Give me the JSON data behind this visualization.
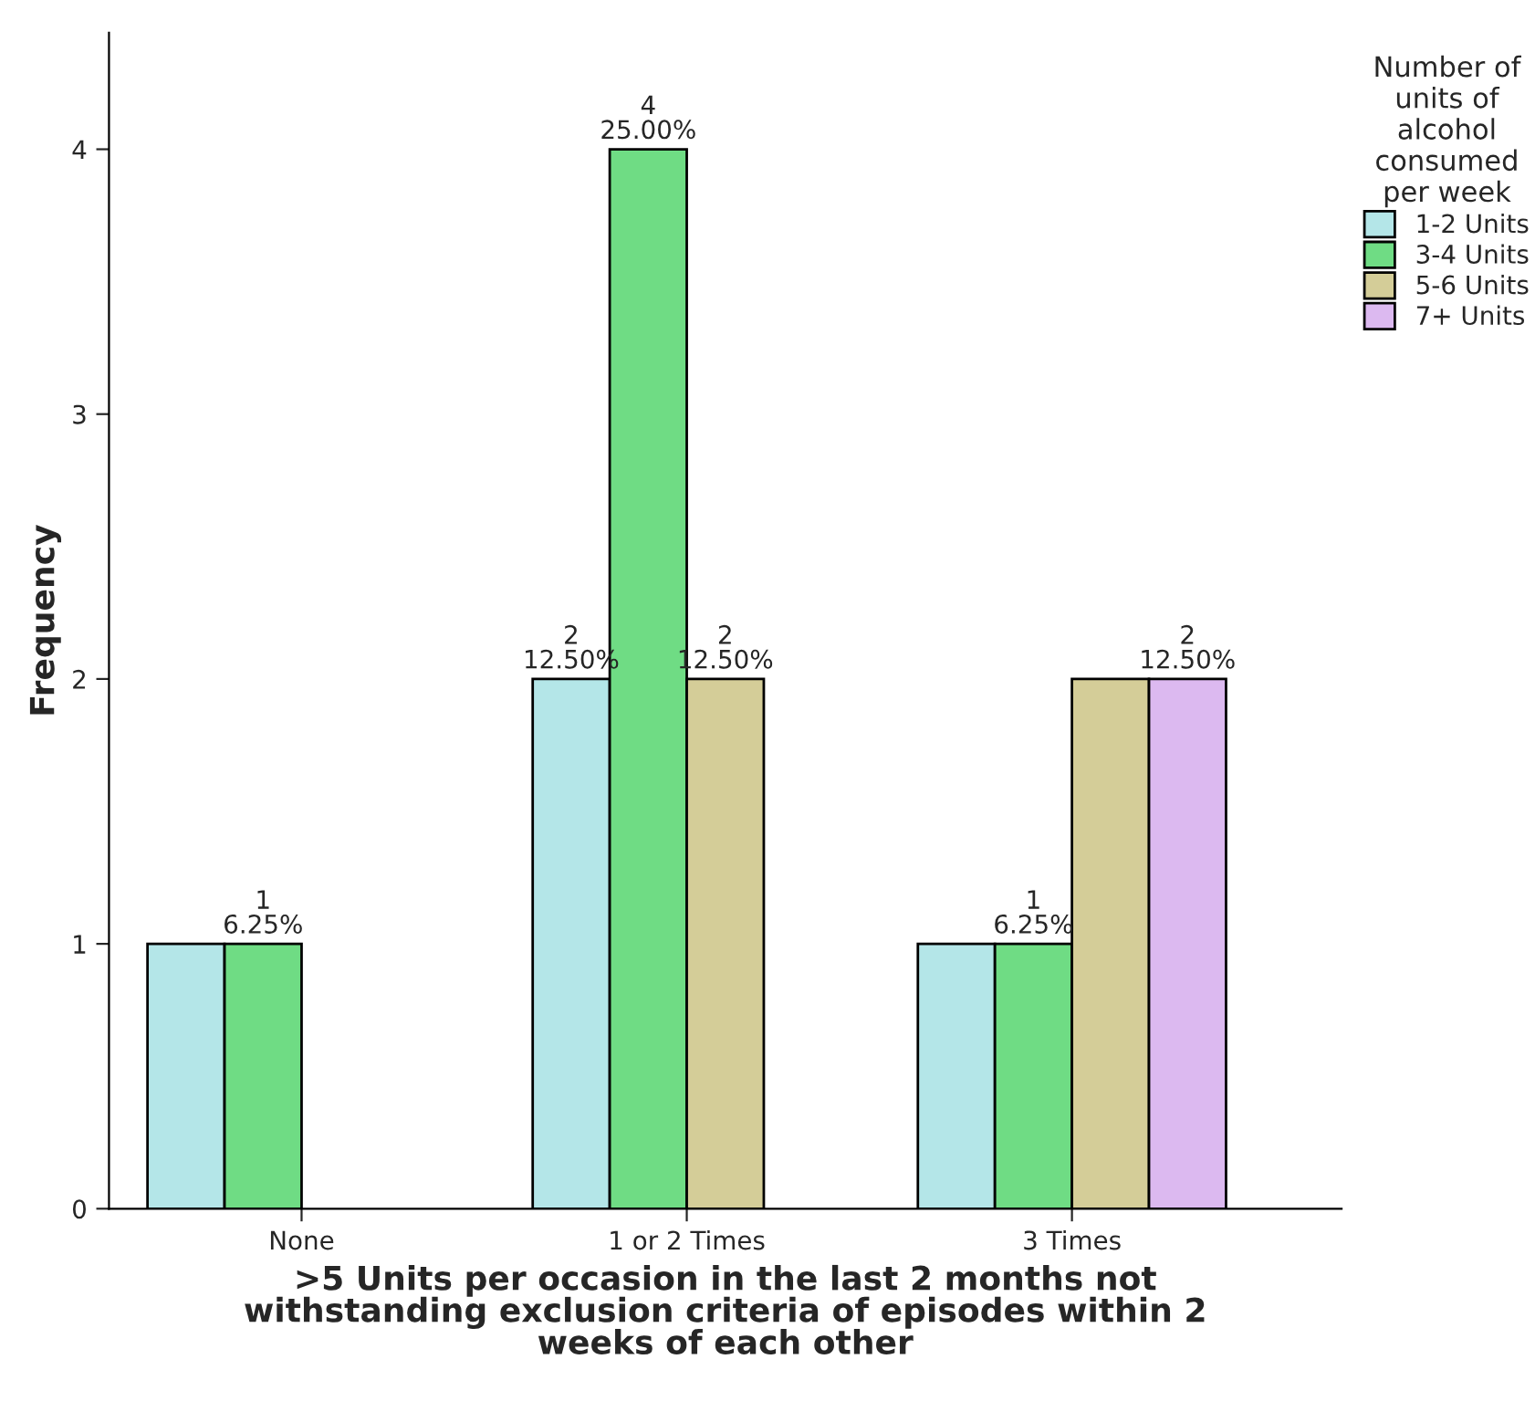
{
  "chart_data": {
    "type": "bar",
    "xlabel": ">5 Units per occasion in the last 2 months not\nwithstanding exclusion criteria of episodes within 2\nweeks of each other",
    "ylabel": "Frequency",
    "legend_title": "Number of\nunits of\nalcohol\nconsumed\nper week",
    "categories": [
      "None",
      "1 or 2 Times",
      "3 Times"
    ],
    "series": [
      {
        "name": "1-2 Units",
        "color": "#b4e6e8",
        "values": [
          1,
          2,
          1
        ],
        "value_labels": [
          null,
          "2\n12.50%",
          null
        ]
      },
      {
        "name": "3-4 Units",
        "color": "#6fdc84",
        "values": [
          1,
          4,
          1
        ],
        "value_labels": [
          "1\n6.25%",
          "4\n25.00%",
          "1\n6.25%"
        ]
      },
      {
        "name": "5-6 Units",
        "color": "#d4cd98",
        "values": [
          null,
          2,
          2
        ],
        "value_labels": [
          null,
          "2\n12.50%",
          null
        ]
      },
      {
        "name": "7+ Units",
        "color": "#dcb9f0",
        "values": [
          null,
          null,
          2
        ],
        "value_labels": [
          null,
          null,
          "2\n12.50%"
        ]
      }
    ],
    "ylim": [
      0,
      4.44
    ],
    "yticks": [
      0,
      1,
      2,
      3,
      4
    ],
    "grid": false,
    "legend": "top right"
  }
}
